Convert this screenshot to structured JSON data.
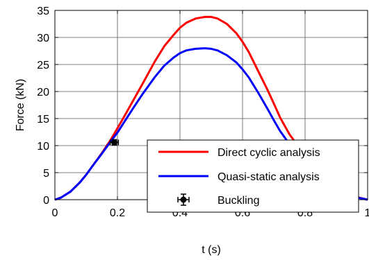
{
  "chart_data": {
    "type": "line",
    "xlabel": "t (s)",
    "ylabel": "Force (kN)",
    "xlim": [
      0,
      1
    ],
    "ylim": [
      0,
      35
    ],
    "xticks": [
      0,
      0.2,
      0.4,
      0.6,
      0.8,
      1
    ],
    "yticks": [
      0,
      5,
      10,
      15,
      20,
      25,
      30,
      35
    ],
    "xtick_labels": [
      "0",
      "0.2",
      "0.4",
      "0.6",
      "0.8",
      "1"
    ],
    "ytick_labels": [
      "0",
      "5",
      "10",
      "15",
      "20",
      "25",
      "30",
      "35"
    ],
    "grid": true,
    "legend_position": "lower-right",
    "series": [
      {
        "name": "Direct cyclic analysis",
        "color": "#ff0000",
        "x": [
          0,
          0.02,
          0.05,
          0.08,
          0.1,
          0.12,
          0.15,
          0.18,
          0.2,
          0.22,
          0.25,
          0.28,
          0.3,
          0.32,
          0.35,
          0.38,
          0.4,
          0.42,
          0.45,
          0.48,
          0.5,
          0.52,
          0.55,
          0.58,
          0.6,
          0.62,
          0.65,
          0.68,
          0.7,
          0.72,
          0.75,
          0.78,
          0.8,
          0.85,
          0.9,
          0.95,
          1
        ],
        "y": [
          0,
          0.4,
          1.5,
          3.2,
          4.6,
          6.2,
          8.6,
          11.2,
          13.2,
          15.2,
          18.3,
          21.4,
          23.5,
          25.6,
          28.4,
          30.5,
          31.8,
          32.7,
          33.5,
          33.8,
          33.8,
          33.5,
          32.5,
          30.8,
          29.2,
          27.3,
          23.8,
          20.3,
          17.8,
          15.2,
          12.1,
          9.7,
          8.0,
          4.9,
          2.3,
          0.7,
          0
        ]
      },
      {
        "name": "Quasi-static analysis",
        "color": "#0000ff",
        "x": [
          0,
          0.02,
          0.05,
          0.08,
          0.1,
          0.12,
          0.15,
          0.18,
          0.2,
          0.22,
          0.25,
          0.28,
          0.3,
          0.32,
          0.35,
          0.38,
          0.4,
          0.42,
          0.45,
          0.48,
          0.5,
          0.52,
          0.55,
          0.58,
          0.6,
          0.62,
          0.65,
          0.68,
          0.7,
          0.72,
          0.75,
          0.78,
          0.8,
          0.85,
          0.9,
          0.95,
          1
        ],
        "y": [
          0,
          0.4,
          1.5,
          3.2,
          4.6,
          6.2,
          8.5,
          10.9,
          12.4,
          14.2,
          16.9,
          19.5,
          21.1,
          22.7,
          24.8,
          26.3,
          27.1,
          27.6,
          27.9,
          28.0,
          27.9,
          27.6,
          26.7,
          25.4,
          24.1,
          22.6,
          19.8,
          16.8,
          14.7,
          12.7,
          10.3,
          8.4,
          7.1,
          4.4,
          2.1,
          0.6,
          0
        ]
      }
    ],
    "markers": [
      {
        "name": "Buckling",
        "x": 0.19,
        "y": 10.6,
        "x_err": 0.013,
        "y_err": 0.5,
        "color": "#000000"
      }
    ]
  }
}
